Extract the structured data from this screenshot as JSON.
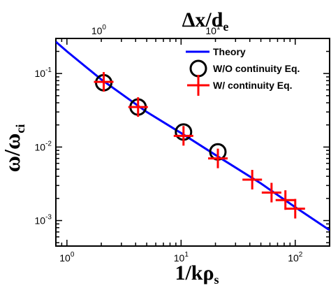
{
  "chart_data": {
    "type": "scatter",
    "xscale": "log",
    "yscale": "log",
    "xlim": [
      0.8,
      200
    ],
    "ylim": [
      0.00045,
      0.3
    ],
    "x_ticks": [
      {
        "value": 1,
        "label": "10",
        "exp": "0"
      },
      {
        "value": 10,
        "label": "10",
        "exp": "1"
      },
      {
        "value": 100,
        "label": "10",
        "exp": "2"
      }
    ],
    "y_ticks": [
      {
        "value": 0.001,
        "label": "10",
        "exp": "-3"
      },
      {
        "value": 0.01,
        "label": "10",
        "exp": "-2"
      },
      {
        "value": 0.1,
        "label": "10",
        "exp": "-1"
      }
    ],
    "top_axis": {
      "ticks": [
        {
          "value": 1,
          "label": "10",
          "exp": "0"
        },
        {
          "value": 10,
          "label": "10",
          "exp": "1"
        }
      ]
    },
    "xlabel": {
      "main": "1/kρ",
      "sub": "s"
    },
    "ylabel": {
      "main1": "ω",
      "sub1": "",
      "main2": "ω",
      "sub2": "ci"
    },
    "top_label": {
      "main": "Δx/d",
      "sub": "e"
    },
    "legend_position": "top-right",
    "grid": false,
    "series": [
      {
        "name": "Theory",
        "kind": "line",
        "color": "#0000ff",
        "x": [
          0.8,
          1,
          2,
          5,
          10,
          20,
          50,
          100,
          200
        ],
        "y": [
          0.27,
          0.2,
          0.083,
          0.03,
          0.0155,
          0.0078,
          0.0032,
          0.00152,
          0.00074
        ]
      },
      {
        "name": "W/O continuity Eq.",
        "kind": "circle",
        "color": "#000000",
        "x": [
          2.1,
          4.2,
          10.5,
          21
        ],
        "y": [
          0.075,
          0.035,
          0.016,
          0.0086
        ]
      },
      {
        "name": "W/ continuity Eq.",
        "kind": "plus",
        "color": "#ff0000",
        "x": [
          2.1,
          4.2,
          10.5,
          21,
          42,
          62,
          82,
          100
        ],
        "y": [
          0.077,
          0.035,
          0.0142,
          0.007,
          0.0036,
          0.0024,
          0.0019,
          0.00145
        ]
      }
    ]
  }
}
